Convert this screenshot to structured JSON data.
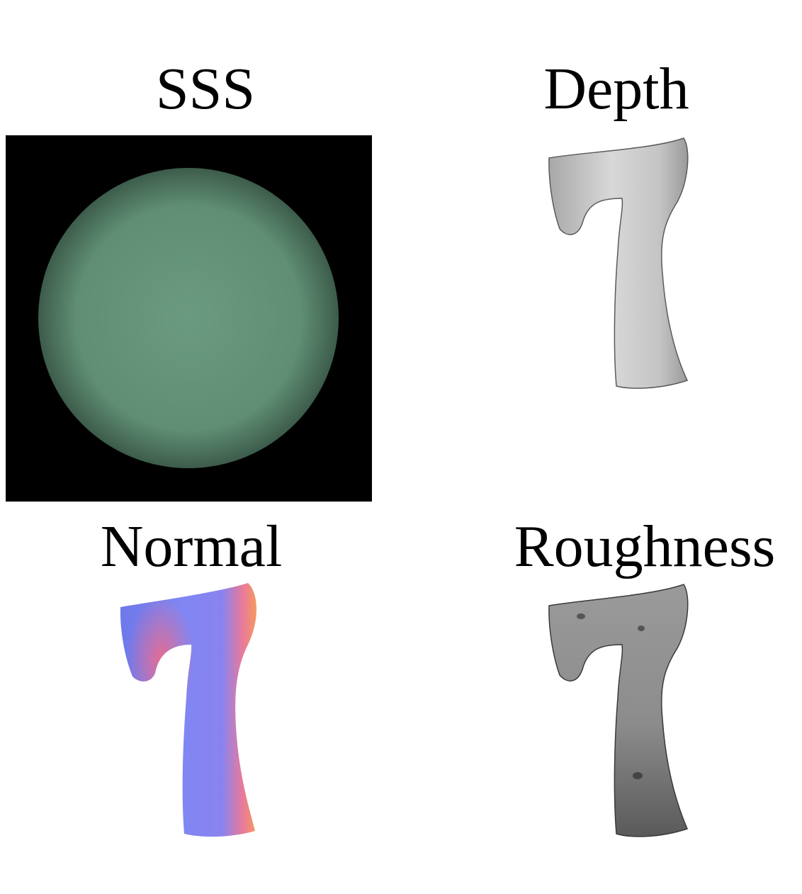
{
  "panels": [
    {
      "id": "sss",
      "title": "SSS",
      "kind": "sphere-render",
      "colors": {
        "background": "#000000",
        "sphere_center": "#6a9a80",
        "sphere_edge": "#3d5c4b"
      }
    },
    {
      "id": "depth",
      "title": "Depth",
      "kind": "digit-7-map",
      "colors": {
        "fill": "#cfcfcf",
        "shade": "#9a9a9a"
      }
    },
    {
      "id": "normal",
      "title": "Normal",
      "kind": "digit-7-map",
      "colors": {
        "fill": "#7b7cf0",
        "accent_red": "#f06a8a",
        "accent_orange": "#f49a62"
      }
    },
    {
      "id": "roughness",
      "title": "Roughness",
      "kind": "digit-7-map",
      "colors": {
        "fill": "#8e8e8e",
        "shade": "#555555"
      }
    }
  ]
}
